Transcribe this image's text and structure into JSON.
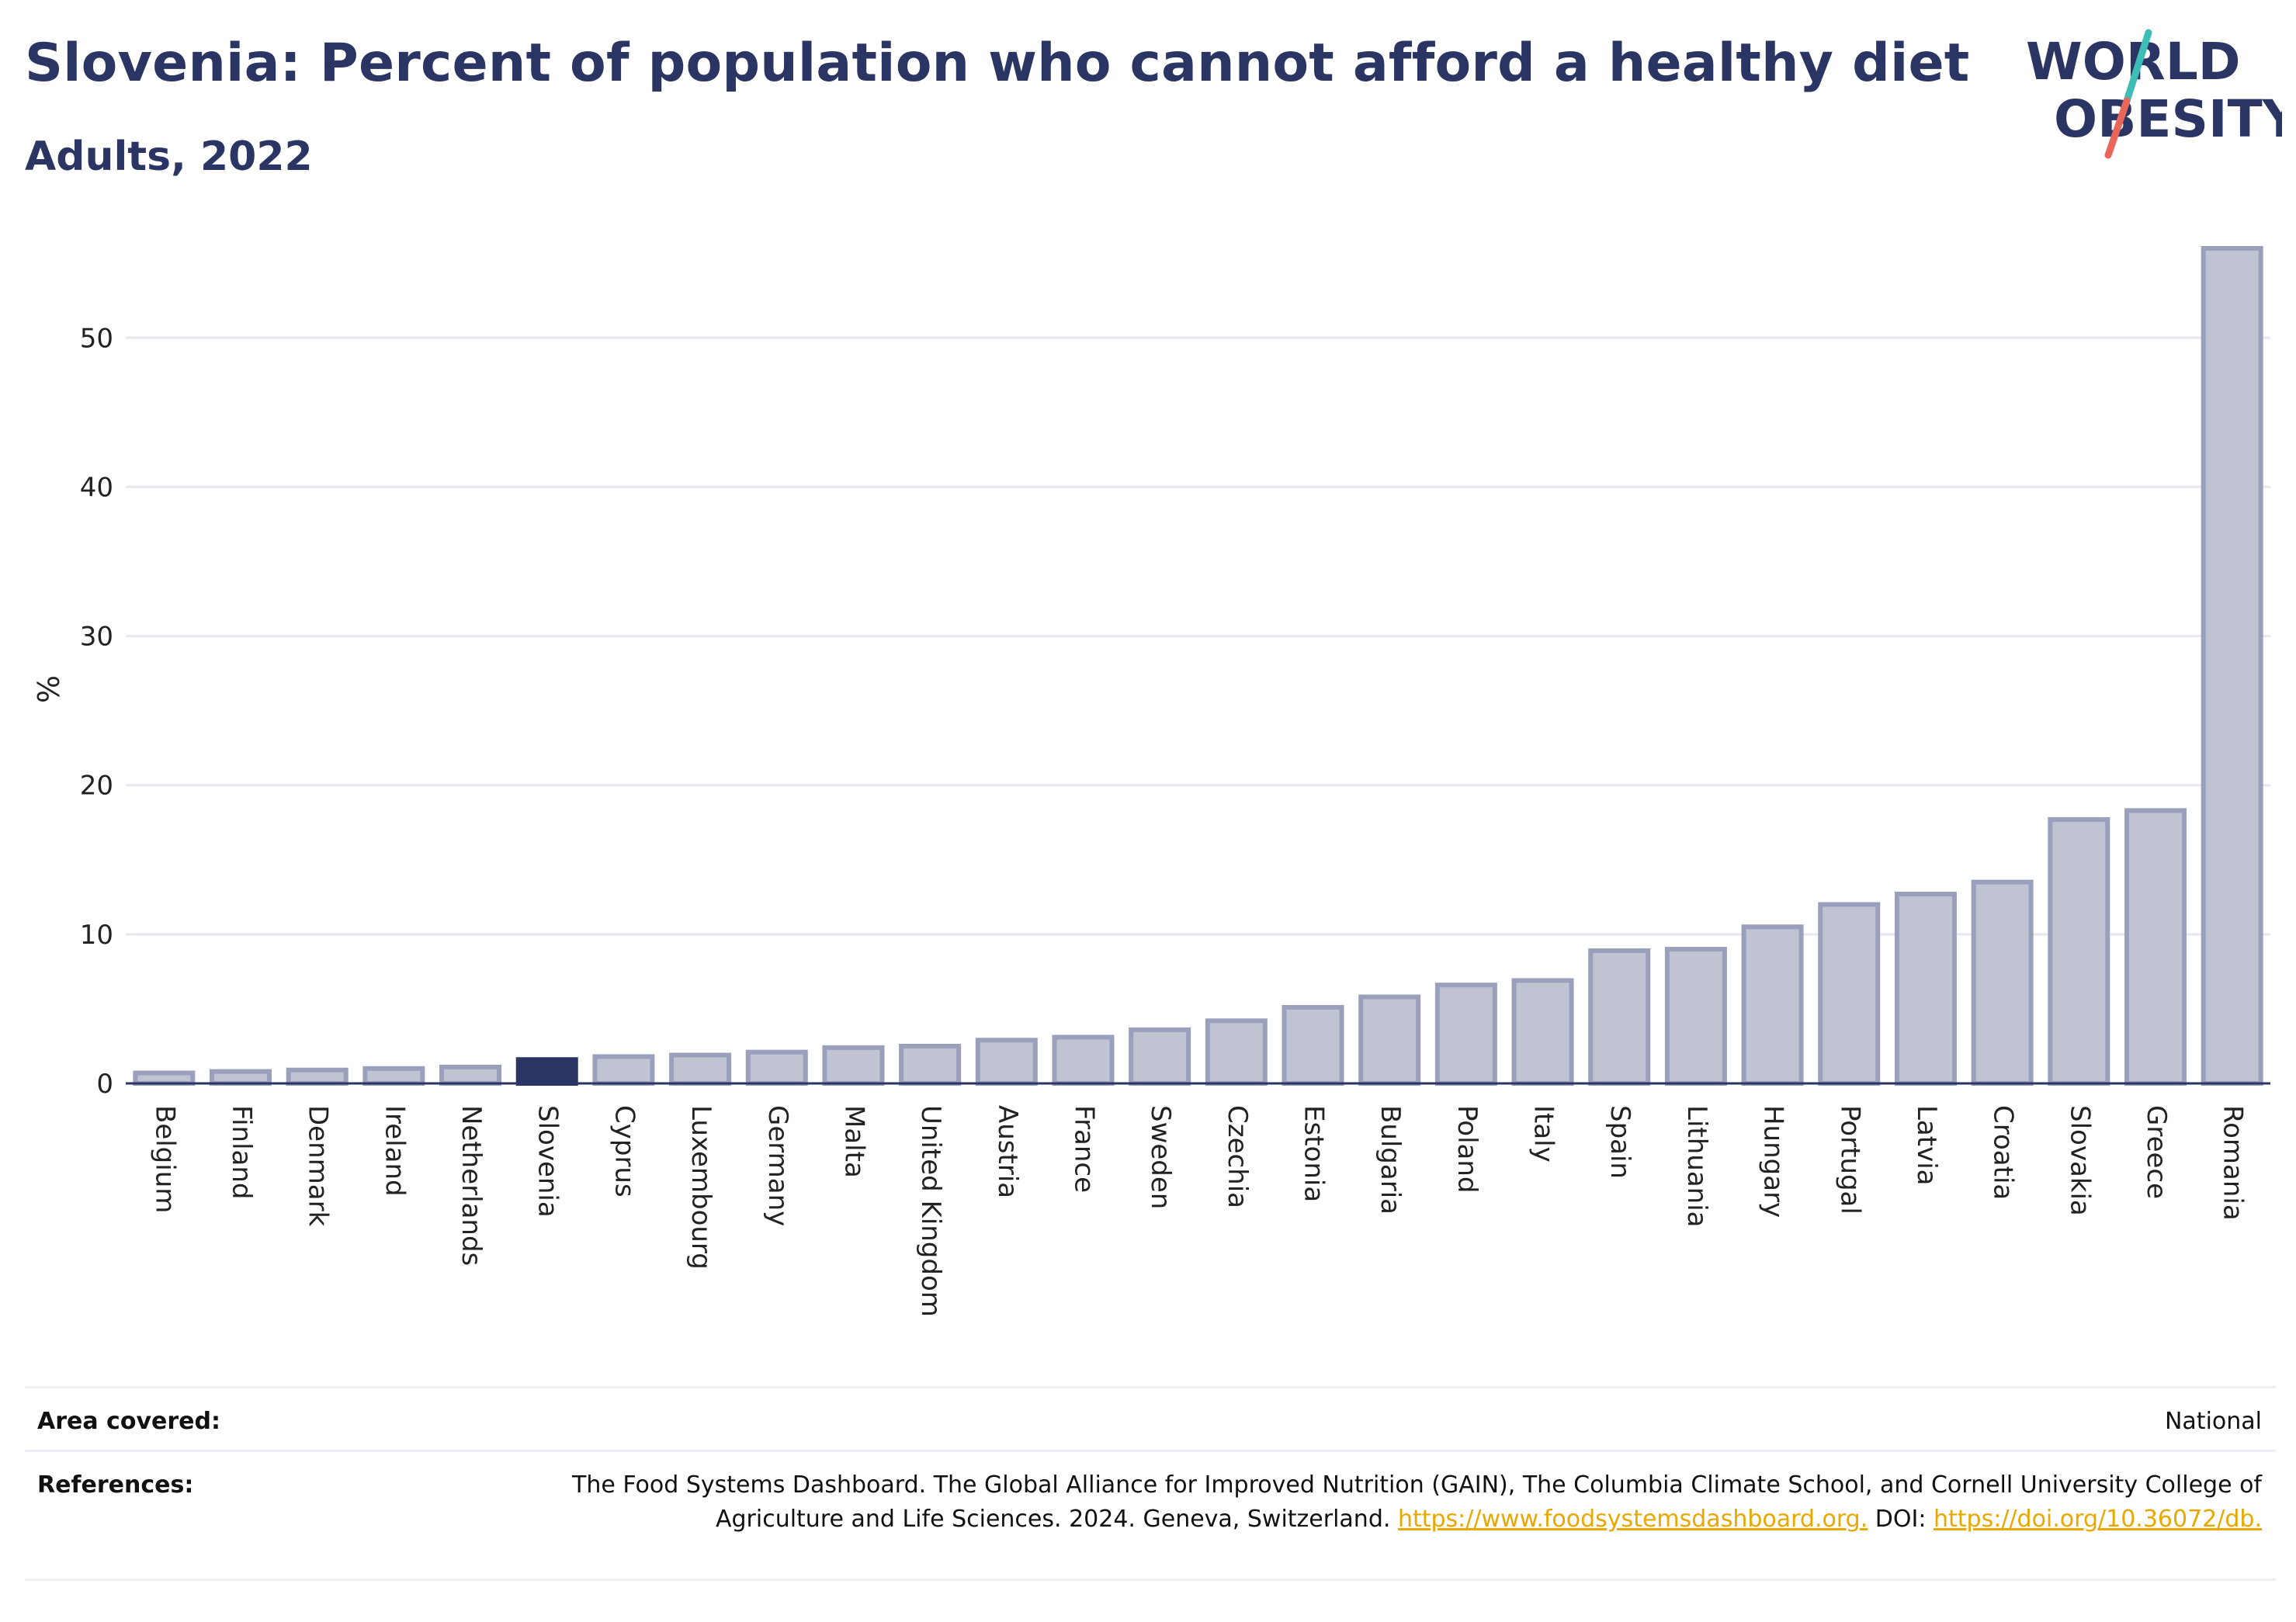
{
  "header": {
    "title": "Slovenia: Percent of population who cannot afford a healthy diet",
    "subtitle": "Adults, 2022"
  },
  "logo": {
    "line1": "WORLD",
    "line2": "OBESITY",
    "colors": {
      "text": "#2b3564",
      "slash_teal": "#3dbdb5",
      "slash_coral": "#e8675a"
    }
  },
  "colors": {
    "bar_fill": "#bfc3d2",
    "bar_stroke": "#9aa0bb",
    "highlight_fill": "#2b3564",
    "grid": "#e6e8f0",
    "axis": "#2b3564"
  },
  "chart_data": {
    "type": "bar",
    "title": "Slovenia: Percent of population who cannot afford a healthy diet",
    "subtitle": "Adults, 2022",
    "xlabel": "",
    "ylabel": "%",
    "ylim": [
      0,
      56
    ],
    "yticks": [
      0,
      10,
      20,
      30,
      40,
      50
    ],
    "grid": true,
    "highlight": "Slovenia",
    "categories": [
      "Belgium",
      "Finland",
      "Denmark",
      "Ireland",
      "Netherlands",
      "Slovenia",
      "Cyprus",
      "Luxembourg",
      "Germany",
      "Malta",
      "United Kingdom",
      "Austria",
      "France",
      "Sweden",
      "Czechia",
      "Estonia",
      "Bulgaria",
      "Poland",
      "Italy",
      "Spain",
      "Lithuania",
      "Hungary",
      "Portugal",
      "Latvia",
      "Croatia",
      "Slovakia",
      "Greece",
      "Romania"
    ],
    "values": [
      0.7,
      0.8,
      0.9,
      1.0,
      1.1,
      1.6,
      1.8,
      1.9,
      2.1,
      2.4,
      2.5,
      2.9,
      3.1,
      3.6,
      4.2,
      5.1,
      5.8,
      6.6,
      6.9,
      8.9,
      9.0,
      10.5,
      12.0,
      12.7,
      13.5,
      17.7,
      18.3,
      56.0
    ]
  },
  "footer": {
    "area_label": "Area covered:",
    "area_value": "National",
    "references_label": "References:",
    "references_text": "The Food Systems Dashboard. The Global Alliance for Improved Nutrition (GAIN), The Columbia Climate School, and Cornell University College of Agriculture and Life Sciences. 2024. Geneva, Switzerland. ",
    "references_link1": "https://www.foodsystemsdashboard.org.",
    "references_doi_label": " DOI: ",
    "references_link2": "https://doi.org/10.36072/db."
  }
}
